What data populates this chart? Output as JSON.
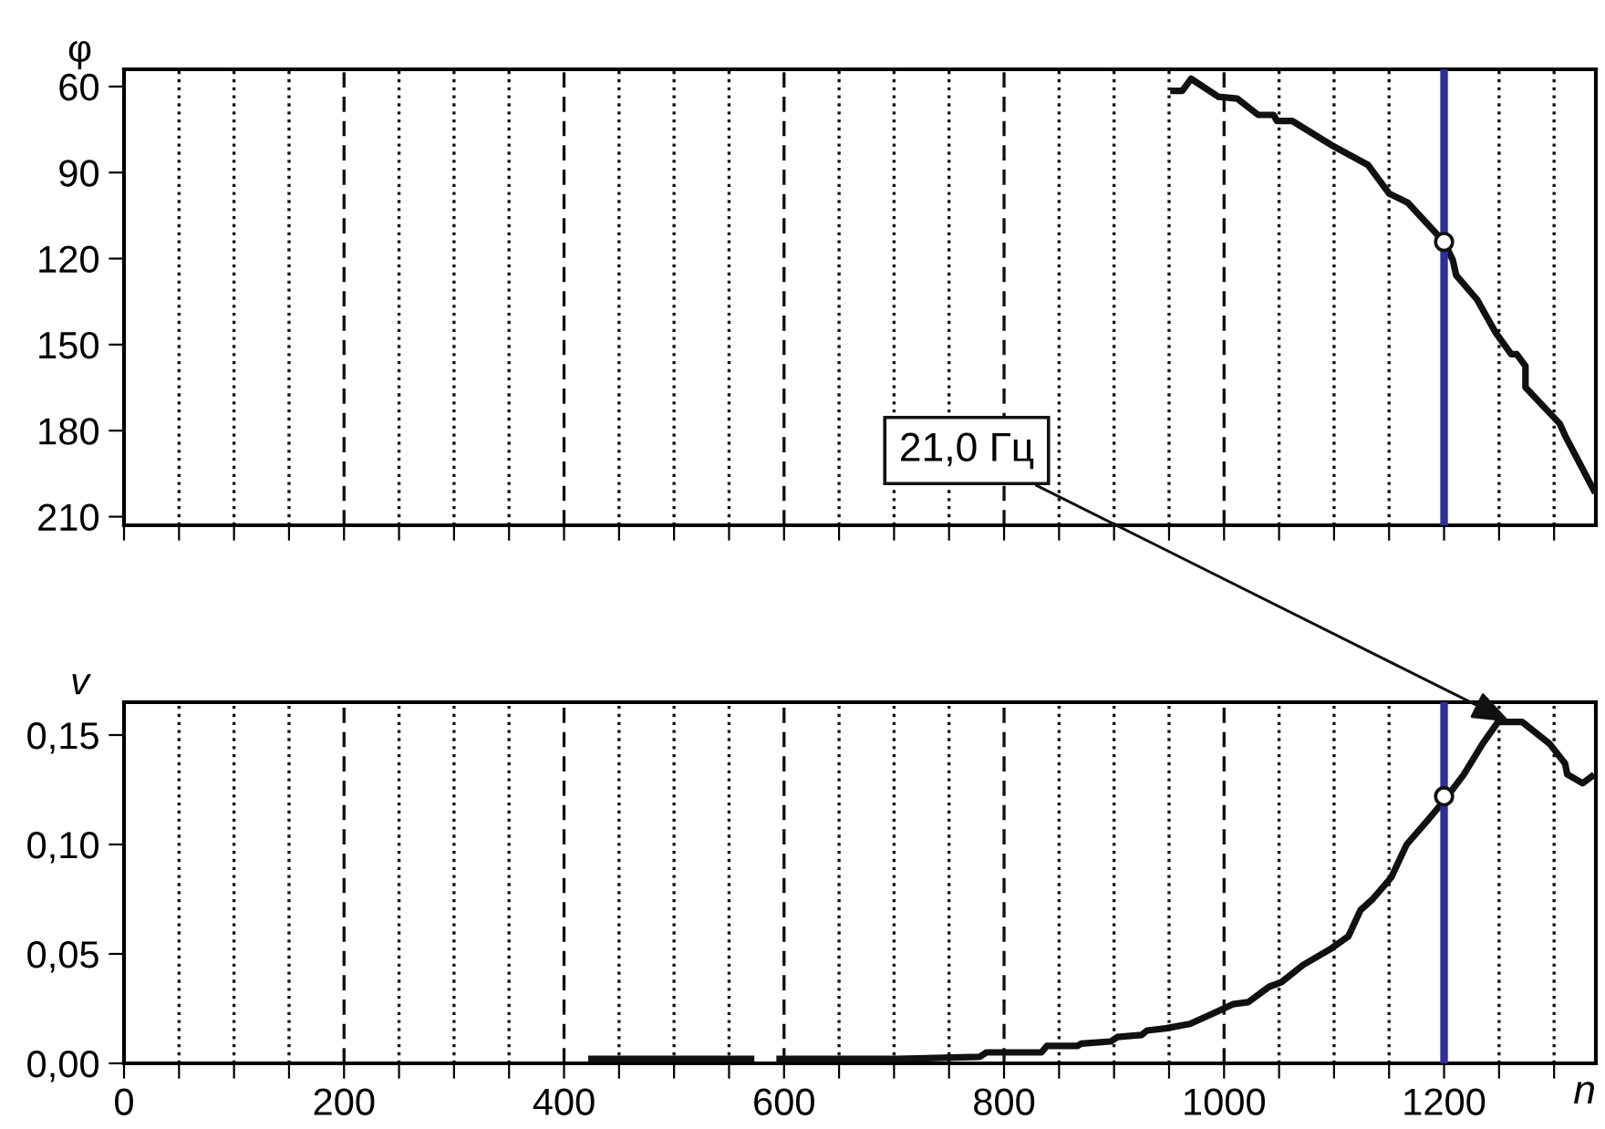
{
  "chart_data": [
    {
      "type": "line",
      "ylabel": "φ",
      "ylim": [
        213,
        54
      ],
      "yticks": [
        60,
        90,
        120,
        150,
        180,
        210
      ],
      "xlim": [
        0,
        1338
      ],
      "xticks": [
        0,
        {
          "value": 50,
          "label": null
        },
        200,
        {
          "value": 100,
          "label": null
        },
        {
          "value": 150,
          "label": null
        },
        {
          "value": 250,
          "label": null
        },
        {
          "value": 300,
          "label": null
        },
        {
          "value": 350,
          "label": null
        },
        400,
        {
          "value": 450,
          "label": null
        },
        {
          "value": 500,
          "label": null
        },
        {
          "value": 550,
          "label": null
        },
        600,
        {
          "value": 650,
          "label": null
        },
        {
          "value": 700,
          "label": null
        },
        {
          "value": 750,
          "label": null
        },
        800,
        {
          "value": 850,
          "label": null
        },
        {
          "value": 900,
          "label": null
        },
        {
          "value": 950,
          "label": null
        },
        1000,
        {
          "value": 1050,
          "label": null
        },
        {
          "value": 1100,
          "label": null
        },
        {
          "value": 1150,
          "label": null
        },
        1200,
        {
          "value": 1250,
          "label": null
        },
        {
          "value": 1300,
          "label": null
        }
      ],
      "tick_labels": "y",
      "grid": "x",
      "series": [
        {
          "color": "#111111",
          "x": [
            954,
            962,
            970,
            995,
            1012,
            1031,
            1045,
            1048,
            1062,
            1098,
            1131,
            1150,
            1167,
            1200,
            1208,
            1211,
            1230,
            1247,
            1261,
            1266,
            1274,
            1274,
            1305,
            1310,
            1336
          ],
          "values": [
            61.5,
            61.5,
            57.3,
            63.6,
            64.2,
            69.9,
            69.9,
            72,
            72,
            80.5,
            87.4,
            97.3,
            100.5,
            114.2,
            120.6,
            125.8,
            134.3,
            145.9,
            153.3,
            153.3,
            157.5,
            164.9,
            177.5,
            181.7,
            200.7
          ]
        },
        {
          "type": "scatter",
          "marker": "circle",
          "color": "#111111",
          "x": [
            1200
          ],
          "values": [
            114.2
          ]
        }
      ],
      "ref_lines": [
        {
          "axis": "x",
          "value": 1200,
          "color": "#2e2e9e"
        }
      ]
    },
    {
      "type": "line",
      "ylabel": "v",
      "xlabel": "n",
      "ylim": [
        0,
        0.165
      ],
      "yticks": [
        {
          "value": 0,
          "label": "0,00"
        },
        {
          "value": 0.05,
          "label": "0,05"
        },
        {
          "value": 0.1,
          "label": "0,10"
        },
        {
          "value": 0.15,
          "label": "0,15"
        }
      ],
      "xlim": [
        0,
        1338
      ],
      "xticks": [
        0,
        {
          "value": 50,
          "label": null
        },
        200,
        {
          "value": 100,
          "label": null
        },
        {
          "value": 150,
          "label": null
        },
        {
          "value": 250,
          "label": null
        },
        {
          "value": 300,
          "label": null
        },
        {
          "value": 350,
          "label": null
        },
        400,
        {
          "value": 450,
          "label": null
        },
        {
          "value": 500,
          "label": null
        },
        {
          "value": 550,
          "label": null
        },
        600,
        {
          "value": 650,
          "label": null
        },
        {
          "value": 700,
          "label": null
        },
        {
          "value": 750,
          "label": null
        },
        800,
        {
          "value": 850,
          "label": null
        },
        {
          "value": 900,
          "label": null
        },
        {
          "value": 950,
          "label": null
        },
        1000,
        {
          "value": 1050,
          "label": null
        },
        {
          "value": 1100,
          "label": null
        },
        {
          "value": 1150,
          "label": null
        },
        1200,
        {
          "value": 1250,
          "label": null
        },
        {
          "value": 1300,
          "label": null
        }
      ],
      "grid": "x",
      "series": [
        {
          "color": "#111111",
          "x": [
            425,
            570,
            580,
            596,
            703,
            778,
            784,
            834,
            839,
            867,
            870,
            897,
            903,
            925,
            930,
            947,
            969,
            991,
            1008,
            1022,
            1041,
            1052,
            1072,
            1096,
            1113,
            1124,
            1135,
            1152,
            1166,
            1185,
            1200,
            1218,
            1235,
            1249,
            1271,
            1296,
            1310,
            1312,
            1326,
            1334
          ],
          "values": [
            0.002,
            0.002,
            null,
            0.002,
            0.002,
            0.003,
            0.005,
            0.005,
            0.008,
            0.008,
            0.009,
            0.01,
            0.012,
            0.013,
            0.015,
            0.016,
            0.018,
            0.023,
            0.027,
            0.028,
            0.035,
            0.037,
            0.045,
            0.052,
            0.058,
            0.07,
            0.075,
            0.085,
            0.1,
            0.111,
            0.12,
            0.132,
            0.146,
            0.156,
            0.156,
            0.146,
            0.137,
            0.132,
            0.128,
            0.131
          ]
        },
        {
          "type": "scatter",
          "marker": "circle",
          "color": "#111111",
          "x": [
            1200
          ],
          "values": [
            0.122
          ]
        }
      ],
      "ref_lines": [
        {
          "axis": "x",
          "value": 1200,
          "color": "#2e2e9e"
        }
      ],
      "annotations": [
        {
          "text": "21,0 Гц",
          "x": 1260,
          "y": 0.156
        }
      ]
    }
  ]
}
